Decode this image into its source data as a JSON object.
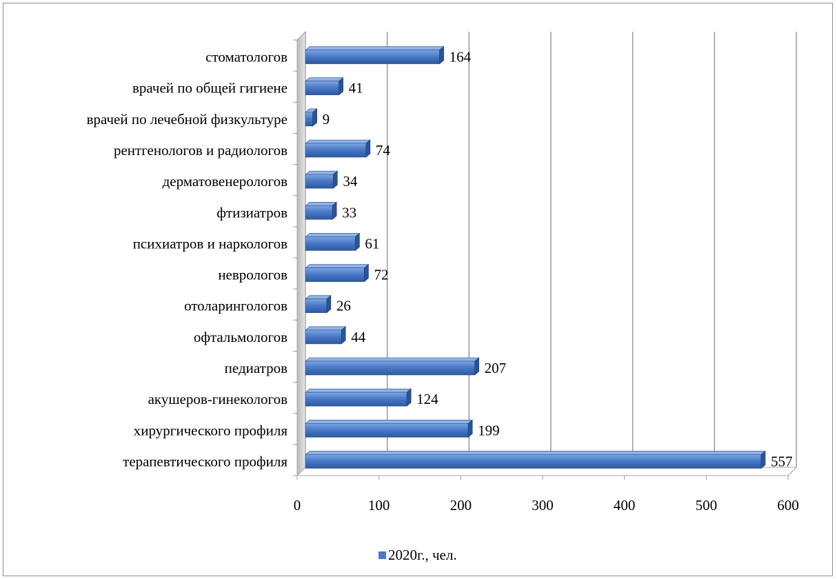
{
  "chart_data": {
    "type": "bar",
    "orientation": "horizontal",
    "style": "3d-clustered-bar",
    "categories": [
      "стоматологов",
      "врачей по общей гигиене",
      "врачей по лечебной физкультуре",
      "рентгенологов и радиологов",
      "дерматовенерологов",
      "фтизиатров",
      "психиатров и наркологов",
      "неврологов",
      "отоларингологов",
      "офтальмологов",
      "педиатров",
      "акушеров-гинекологов",
      "хирургического профиля",
      "терапевтического профиля"
    ],
    "series": [
      {
        "name": "2020г., чел.",
        "values": [
          164,
          41,
          9,
          74,
          34,
          33,
          61,
          72,
          26,
          44,
          207,
          124,
          199,
          557
        ],
        "color": "#4a7ac8"
      }
    ],
    "xlim": [
      0,
      600
    ],
    "x_ticks": [
      "0",
      "100",
      "200",
      "300",
      "400",
      "500",
      "600"
    ],
    "grid": "vertical",
    "legend_position": "bottom",
    "data_labels": true
  }
}
